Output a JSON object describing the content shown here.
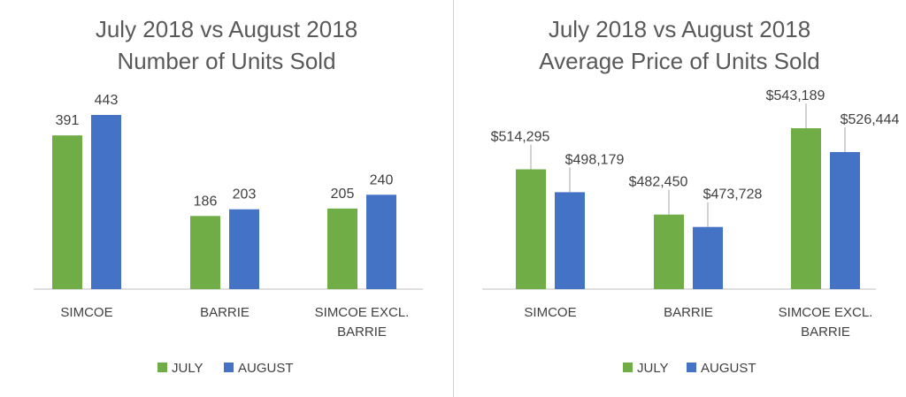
{
  "legend_position": "bottom",
  "colors": {
    "july": "#70AD47",
    "august": "#4472C4"
  },
  "chart_data": [
    {
      "type": "bar",
      "title": [
        "July 2018 vs August 2018",
        "Number of Units Sold"
      ],
      "categories": [
        [
          "SIMCOE"
        ],
        [
          "BARRIE"
        ],
        [
          "SIMCOE EXCL.",
          "BARRIE"
        ]
      ],
      "series": [
        {
          "name": "JULY",
          "values": [
            391,
            186,
            205
          ],
          "labels": [
            "391",
            "186",
            "205"
          ]
        },
        {
          "name": "AUGUST",
          "values": [
            443,
            203,
            240
          ],
          "labels": [
            "443",
            "203",
            "240"
          ]
        }
      ],
      "ylim": [
        0,
        470
      ],
      "grid": false,
      "leader_lines": false
    },
    {
      "type": "bar",
      "title": [
        "July 2018 vs August 2018",
        "Average Price of Units Sold"
      ],
      "categories": [
        [
          "SIMCOE"
        ],
        [
          "BARRIE"
        ],
        [
          "SIMCOE EXCL.",
          "BARRIE"
        ]
      ],
      "series": [
        {
          "name": "JULY",
          "values": [
            514295,
            482450,
            543189
          ],
          "labels": [
            "$514,295",
            "$482,450",
            "$543,189"
          ]
        },
        {
          "name": "AUGUST",
          "values": [
            498179,
            473728,
            526444
          ],
          "labels": [
            "$498,179",
            "$473,728",
            "$526,444"
          ]
        }
      ],
      "ylim": [
        430000,
        560000
      ],
      "grid": false,
      "leader_lines": true
    }
  ]
}
